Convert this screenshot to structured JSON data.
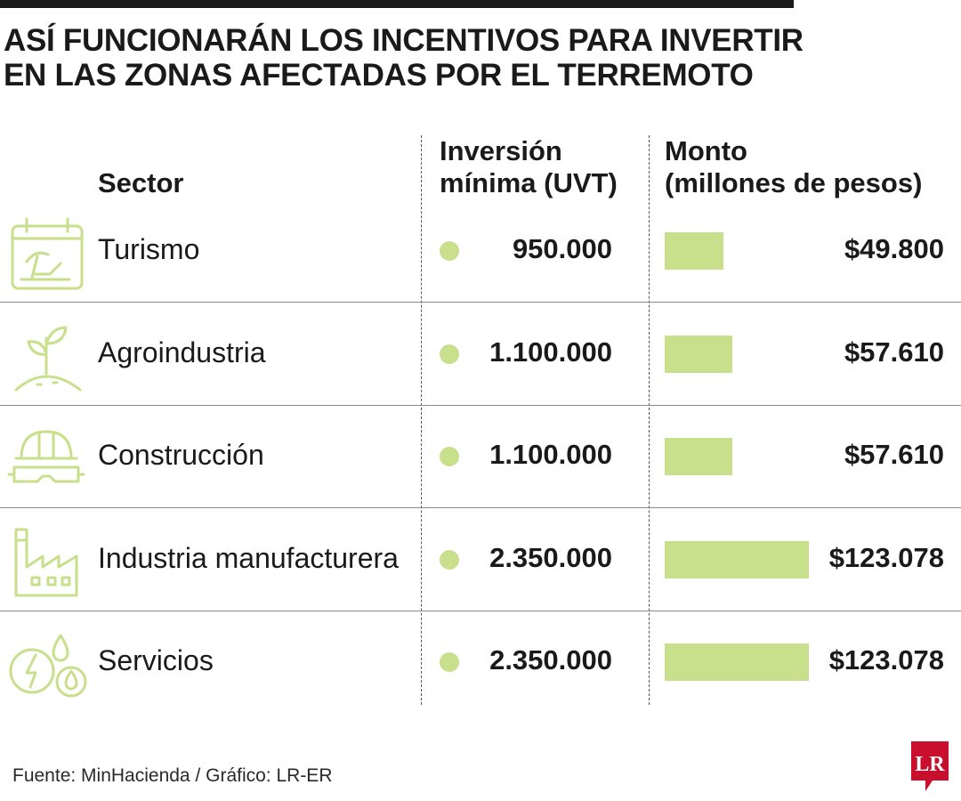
{
  "title_lines": [
    "ASÍ FUNCIONARÁN LOS INCENTIVOS PARA INVERTIR",
    "EN LAS ZONAS AFECTADAS POR EL TERREMOTO"
  ],
  "headers": {
    "sector": "Sector",
    "uvt_line1": "Inversión",
    "uvt_line2": "mínima (UVT)",
    "monto_line1": "Monto",
    "monto_line2": "(millones de pesos)"
  },
  "rows": [
    {
      "sector": "Turismo",
      "uvt": "950.000",
      "monto": "$49.800",
      "icon": "calendar-beach-icon"
    },
    {
      "sector": "Agroindustria",
      "uvt": "1.100.000",
      "monto": "$57.610",
      "icon": "sprout-icon"
    },
    {
      "sector": "Construcción",
      "uvt": "1.100.000",
      "monto": "$57.610",
      "icon": "hard-hat-icon"
    },
    {
      "sector": "Industria manufacturera",
      "uvt": "2.350.000",
      "monto": "$123.078",
      "icon": "factory-icon"
    },
    {
      "sector": "Servicios",
      "uvt": "2.350.000",
      "monto": "$123.078",
      "icon": "utilities-icon"
    }
  ],
  "chart_data": {
    "type": "table",
    "categories": [
      "Turismo",
      "Agroindustria",
      "Construcción",
      "Industria manufacturera",
      "Servicios"
    ],
    "series": [
      {
        "name": "Inversión mínima (UVT)",
        "values": [
          950000,
          1100000,
          1100000,
          2350000,
          2350000
        ]
      },
      {
        "name": "Monto (millones de pesos)",
        "values": [
          49800,
          57610,
          57610,
          123078,
          123078
        ]
      }
    ]
  },
  "colors": {
    "accent": "#c8df8c",
    "text": "#1a1a1a",
    "rule": "#1a1a1a",
    "logo": "#c8102e"
  },
  "source": "Fuente: MinHacienda / Gráfico: LR-ER",
  "logo_text": "LR"
}
